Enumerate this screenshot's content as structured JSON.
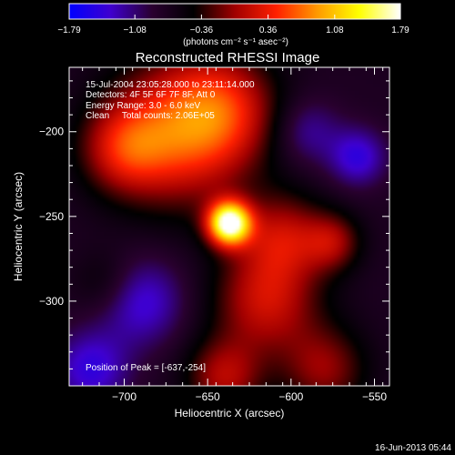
{
  "chart_data": {
    "type": "heatmap",
    "title": "Reconstructed RHESSI Image",
    "xlabel": "Heliocentric X (arcsec)",
    "ylabel": "Heliocentric Y (arcsec)",
    "xlim": [
      -733,
      -541
    ],
    "ylim": [
      -350,
      -162
    ],
    "x_ticks": [
      -700,
      -650,
      -600,
      -550
    ],
    "y_ticks": [
      -200,
      -250,
      -300
    ],
    "x_tick_labels": [
      "−700",
      "−650",
      "−600",
      "−550"
    ],
    "y_tick_labels": [
      "−200",
      "−250",
      "−300"
    ],
    "colorbar": {
      "min": -1.79,
      "max": 1.79,
      "ticks": [
        -1.79,
        -1.08,
        -0.36,
        0.36,
        1.08,
        1.79
      ],
      "tick_labels": [
        "−1.79",
        "−1.08",
        "−0.36",
        "0.36",
        "1.08",
        "1.79"
      ],
      "unit_text": "(photons cm⁻² s⁻¹ asec⁻²)",
      "colors": [
        "#0000ff",
        "#3f00cf",
        "#2a0030",
        "#000000",
        "#a00000",
        "#ff2000",
        "#ff9a00",
        "#ffff00",
        "#ffffff"
      ]
    },
    "annotations": [
      "15-Jul-2004 23:05:28.000 to 23:11:14.000",
      "Detectors: 4F 5F 6F 7F 8F, Att 0",
      "Energy Range: 3.0 - 6.0 keV",
      "Clean     Total counts: 2.06E+05"
    ],
    "peak_label": "Position of Peak = [-637,-254]",
    "peak": {
      "x": -637,
      "y": -254,
      "value": 1.79
    },
    "sources": [
      {
        "x": -637,
        "y": -254,
        "sigma": 9,
        "amp": 1.79
      },
      {
        "x": -665,
        "y": -200,
        "sigma": 30,
        "amp": 0.55
      },
      {
        "x": -700,
        "y": -210,
        "sigma": 18,
        "amp": 0.35
      },
      {
        "x": -640,
        "y": -185,
        "sigma": 22,
        "amp": 0.3
      },
      {
        "x": -605,
        "y": -262,
        "sigma": 18,
        "amp": 0.35
      },
      {
        "x": -615,
        "y": -300,
        "sigma": 22,
        "amp": 0.4
      },
      {
        "x": -640,
        "y": -345,
        "sigma": 16,
        "amp": 0.35
      },
      {
        "x": -575,
        "y": -265,
        "sigma": 12,
        "amp": 0.3
      },
      {
        "x": -580,
        "y": -340,
        "sigma": 18,
        "amp": 0.3
      },
      {
        "x": -710,
        "y": -290,
        "sigma": 14,
        "amp": 0.15
      },
      {
        "x": -560,
        "y": -215,
        "sigma": 12,
        "amp": -0.3
      },
      {
        "x": -590,
        "y": -200,
        "sigma": 14,
        "amp": -0.2
      },
      {
        "x": -690,
        "y": -300,
        "sigma": 18,
        "amp": -0.3
      },
      {
        "x": -720,
        "y": -340,
        "sigma": 16,
        "amp": -0.3
      }
    ]
  },
  "footer": {
    "timestamp": "16-Jun-2013 05:44"
  }
}
